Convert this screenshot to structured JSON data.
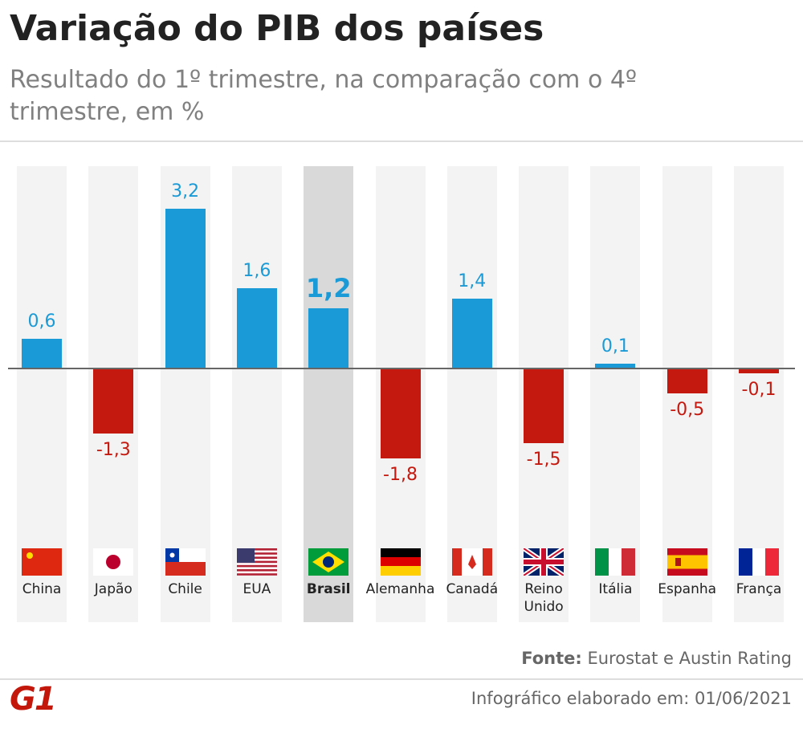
{
  "chart_data": {
    "type": "bar",
    "title": "Variação do PIB dos países",
    "subtitle": "Resultado do 1º trimestre, na comparação com o 4º trimestre, em %",
    "categories": [
      "China",
      "Japão",
      "Chile",
      "EUA",
      "Brasil",
      "Alemanha",
      "Canadá",
      "Reino Unido",
      "Itália",
      "Espanha",
      "França"
    ],
    "values": [
      0.6,
      -1.3,
      3.2,
      1.6,
      1.2,
      -1.8,
      1.4,
      -1.5,
      0.1,
      -0.5,
      -0.1
    ],
    "value_labels": [
      "0,6",
      "-1,3",
      "3,2",
      "1,6",
      "1,2",
      "-1,8",
      "1,4",
      "-1,5",
      "0,1",
      "-0,5",
      "-0,1"
    ],
    "positive_color": "#1a9ad6",
    "negative_color": "#c4190f",
    "highlight": "Brasil",
    "source_label": "Fonte:",
    "source": "Eurostat e Austin Rating",
    "credit": "Infográfico elaborado em: 01/06/2021",
    "logo": "G1"
  }
}
